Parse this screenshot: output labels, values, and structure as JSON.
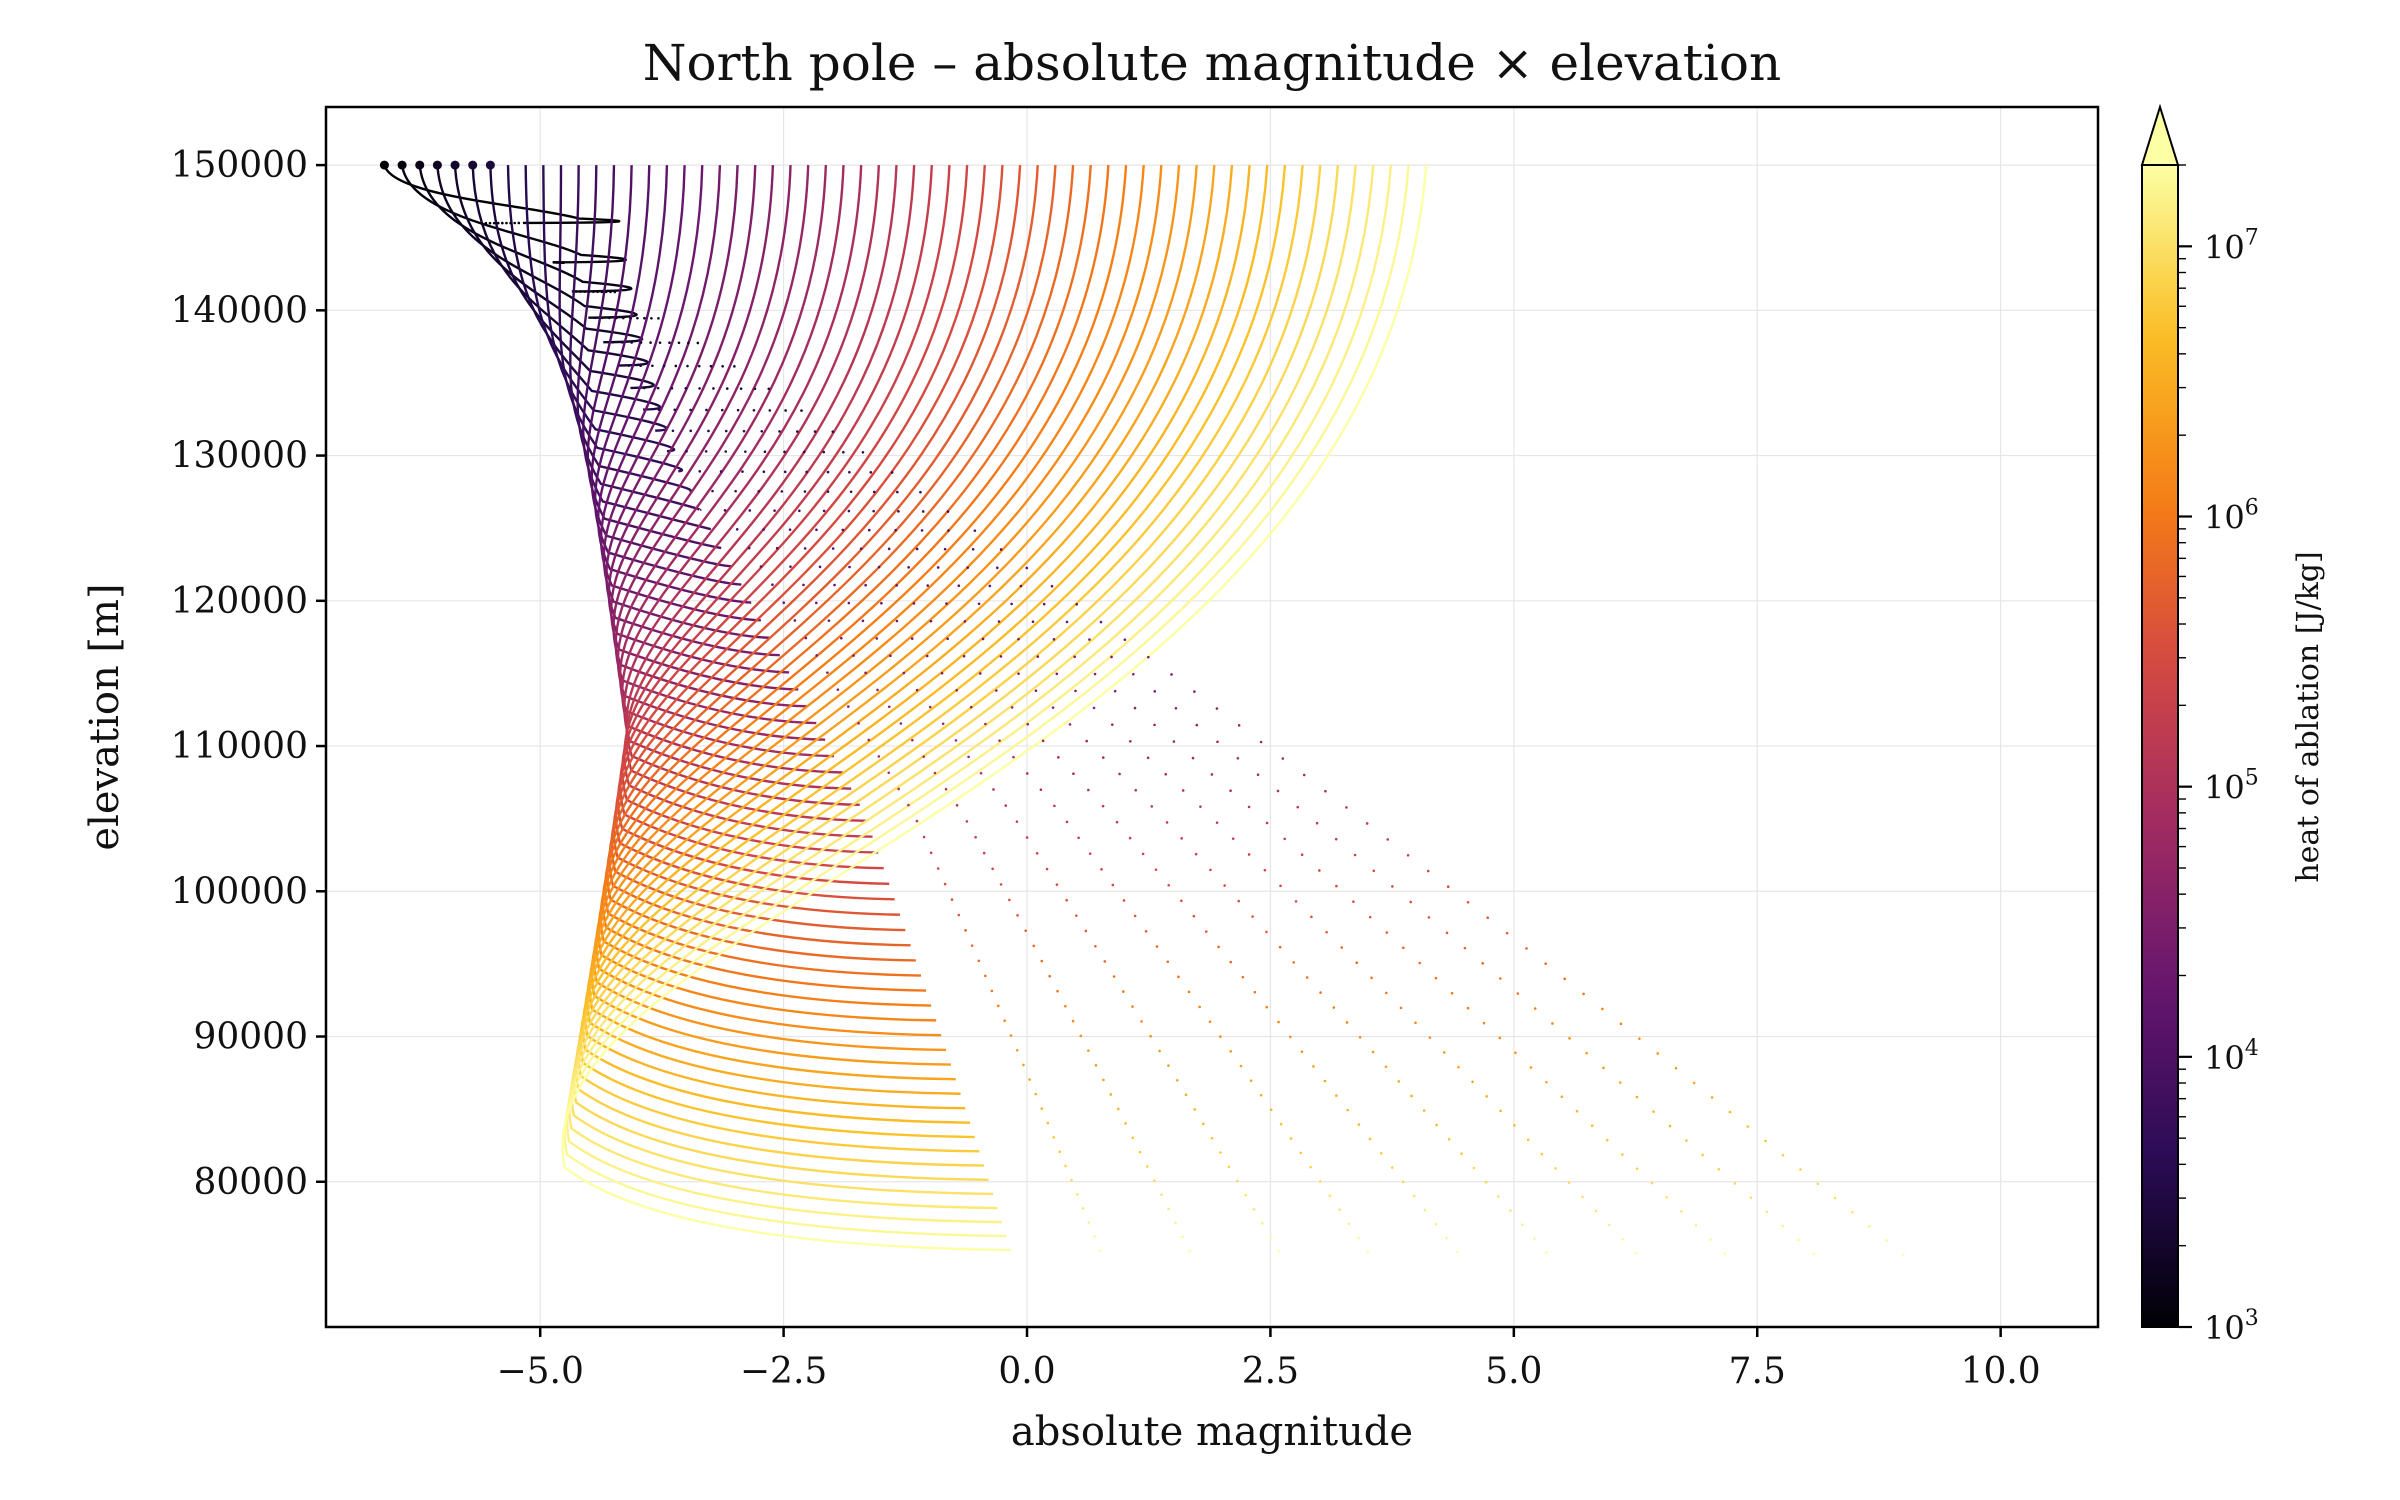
{
  "chart_data": {
    "type": "line",
    "title": "North pole – absolute magnitude × elevation",
    "xlabel": "absolute magnitude",
    "ylabel": "elevation [m]",
    "xlim": [
      -7.2,
      11.0
    ],
    "ylim": [
      70000,
      154000
    ],
    "x_ticks": [
      "−5.0",
      "−2.5",
      "0.0",
      "2.5",
      "5.0",
      "7.5",
      "10.0"
    ],
    "x_tick_values": [
      -5.0,
      -2.5,
      0.0,
      2.5,
      5.0,
      7.5,
      10.0
    ],
    "y_ticks": [
      "150000",
      "140000",
      "130000",
      "120000",
      "110000",
      "100000",
      "90000",
      "80000"
    ],
    "y_tick_values": [
      150000,
      140000,
      130000,
      120000,
      110000,
      100000,
      90000,
      80000
    ],
    "grid": true,
    "colormap": "inferno",
    "colorbar": {
      "label": "heat of ablation [J/kg]",
      "scale": "log",
      "range": [
        1000,
        20000000
      ],
      "extend": "max",
      "ticks": [
        {
          "base": "10",
          "exp": "3",
          "value": 1000
        },
        {
          "base": "10",
          "exp": "4",
          "value": 10000
        },
        {
          "base": "10",
          "exp": "5",
          "value": 100000
        },
        {
          "base": "10",
          "exp": "6",
          "value": 1000000
        },
        {
          "base": "10",
          "exp": "7",
          "value": 10000000
        }
      ]
    },
    "series_family": {
      "count": 60,
      "heat_of_ablation_range": [
        1000,
        20000000
      ],
      "start_elevation": 150000,
      "start_magnitude_first": -6.6,
      "start_magnitude_last": 4.1,
      "peak_magnitude_first": -4.95,
      "peak_magnitude_middle": -4.4,
      "peak_magnitude_last": -5.1,
      "end_elevation_first": 146000,
      "end_elevation_last": 75000,
      "end_magnitude_first": -5.6,
      "end_magnitude_last": 9.0
    }
  }
}
